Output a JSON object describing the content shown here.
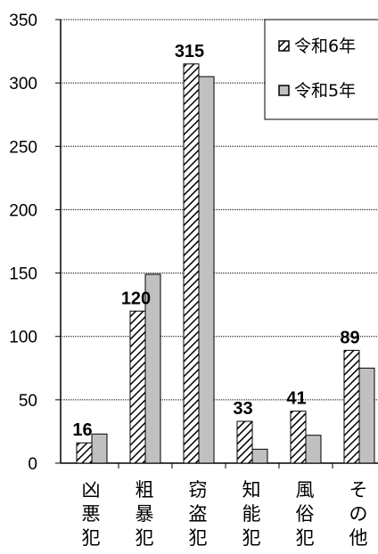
{
  "chart_data": {
    "type": "bar",
    "categories": [
      "凶悪犯",
      "粗暴犯",
      "窃盗犯",
      "知能犯",
      "風俗犯",
      "その他"
    ],
    "series": [
      {
        "name": "令和6年",
        "values": [
          16,
          120,
          315,
          33,
          41,
          89
        ],
        "pattern": "hatched"
      },
      {
        "name": "令和5年",
        "values": [
          23,
          149,
          305,
          11,
          22,
          75
        ],
        "color": "#c0c0c0"
      }
    ],
    "data_labels": [
      "16",
      "120",
      "315",
      "33",
      "41",
      "89"
    ],
    "y_ticks": [
      0,
      50,
      100,
      150,
      200,
      250,
      300,
      350
    ],
    "ylim": [
      0,
      350
    ],
    "grid": true,
    "legend_position": "top-right",
    "title": "",
    "xlabel": "",
    "ylabel": ""
  }
}
